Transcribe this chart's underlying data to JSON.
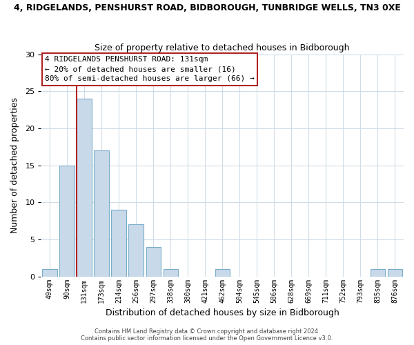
{
  "title": "4, RIDGELANDS, PENSHURST ROAD, BIDBOROUGH, TUNBRIDGE WELLS, TN3 0XE",
  "subtitle": "Size of property relative to detached houses in Bidborough",
  "xlabel": "Distribution of detached houses by size in Bidborough",
  "ylabel": "Number of detached properties",
  "bar_color": "#c8d9ea",
  "bar_edge_color": "#7aaecb",
  "reference_line_color": "#b22222",
  "categories": [
    "49sqm",
    "90sqm",
    "131sqm",
    "173sqm",
    "214sqm",
    "256sqm",
    "297sqm",
    "338sqm",
    "380sqm",
    "421sqm",
    "462sqm",
    "504sqm",
    "545sqm",
    "586sqm",
    "628sqm",
    "669sqm",
    "711sqm",
    "752sqm",
    "793sqm",
    "835sqm",
    "876sqm"
  ],
  "values": [
    1,
    15,
    24,
    17,
    9,
    7,
    4,
    1,
    0,
    0,
    1,
    0,
    0,
    0,
    0,
    0,
    0,
    0,
    0,
    1,
    1
  ],
  "reference_bar_index": 2,
  "ylim": [
    0,
    30
  ],
  "yticks": [
    0,
    5,
    10,
    15,
    20,
    25,
    30
  ],
  "annotation_title": "4 RIDGELANDS PENSHURST ROAD: 131sqm",
  "annotation_line1": "← 20% of detached houses are smaller (16)",
  "annotation_line2": "80% of semi-detached houses are larger (66) →",
  "annotation_box_color": "#ffffff",
  "annotation_box_edge": "#b22222",
  "footer1": "Contains HM Land Registry data © Crown copyright and database right 2024.",
  "footer2": "Contains public sector information licensed under the Open Government Licence v3.0.",
  "background_color": "#ffffff",
  "plot_background": "#ffffff",
  "grid_color": "#d0dce8"
}
